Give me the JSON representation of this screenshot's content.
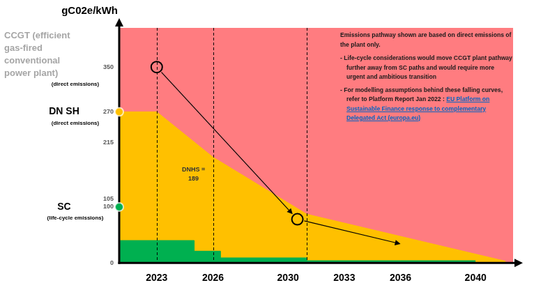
{
  "chart_data": {
    "type": "area",
    "y_label": "gC02e/kWh",
    "xlim": [
      2021,
      2042
    ],
    "xticks": [
      2023,
      2026,
      2030,
      2033,
      2036,
      2040
    ],
    "ylim": [
      0,
      420
    ],
    "yticks": [
      0,
      100,
      105,
      215,
      270,
      350
    ],
    "grid": false,
    "series": [
      {
        "type": "step",
        "color": "#00b050",
        "x": [
          2021,
          2025,
          2026.4,
          2031,
          2036,
          2040
        ],
        "values": [
          100,
          40,
          21,
          9,
          4,
          4
        ]
      },
      {
        "type": "area",
        "color": "#ffc000",
        "x": [
          2021,
          2023,
          2026,
          2031,
          2041.6
        ],
        "values": [
          270,
          270,
          189,
          87,
          3
        ]
      },
      {
        "type": "arrow",
        "color": "#000000",
        "marker": "circle",
        "x": [
          2023,
          2030.5,
          2036
        ],
        "values": [
          350,
          78,
          34
        ]
      }
    ],
    "vertical_lines": [
      2023,
      2026,
      2031
    ],
    "annotations": [
      {
        "y": 350,
        "text": "CCGT (efficient gas-fired conventional power plant)",
        "subtext": "(direct emissions)",
        "color": "#a6a6a6"
      },
      {
        "y": 270,
        "text": "DN SH",
        "subtext": "(direct emissions)",
        "marker": "circle",
        "color": "#ffc000"
      },
      {
        "y": 100,
        "text": "SC",
        "subtext": "(life-cycle emissions)",
        "marker": "circle",
        "color": "#00b050"
      },
      {
        "x": 2026,
        "y": 189,
        "text": "DNHS = 189"
      }
    ],
    "note": {
      "text": "Emissions pathway shown are based on direct emissions of the plant only.",
      "bullets": [
        {
          "text": "- Life-cycle considerations would move CCGT plant pathway further away from SC paths and would require more urgent and ambitious transition"
        },
        {
          "text": "- For modelling assumptions behind these falling curves, refer to Platform Report Jan 2022 :",
          "link": "EU Platform on Sustainable Finance response to complementary Delegated Act (europa.eu)"
        }
      ]
    }
  }
}
